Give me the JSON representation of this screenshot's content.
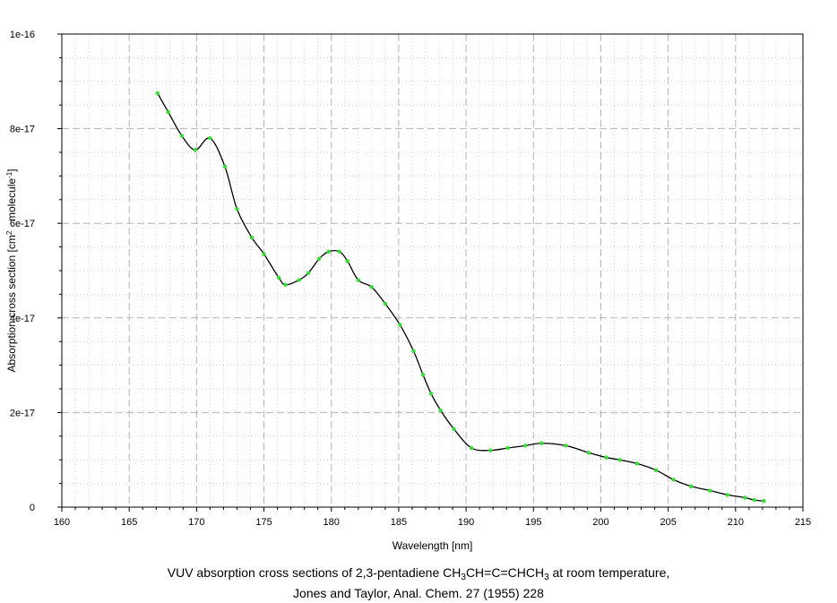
{
  "chart_data": {
    "type": "line",
    "xlabel": "Wavelength [nm]",
    "ylabel": {
      "text_before": "Absorption cross section [cm",
      "sup1": "2",
      "text_middle": " · molecule",
      "sup2": "-1",
      "text_after": "]"
    },
    "xlim": [
      160,
      215
    ],
    "ylim": [
      0,
      1e-16
    ],
    "x_ticks": [
      160,
      165,
      170,
      175,
      180,
      185,
      190,
      195,
      200,
      205,
      210,
      215
    ],
    "x_tick_labels": [
      "160",
      "165",
      "170",
      "175",
      "180",
      "185",
      "190",
      "195",
      "200",
      "205",
      "210",
      "215"
    ],
    "y_ticks": [
      0,
      2e-17,
      4e-17,
      6e-17,
      8e-17,
      1e-16
    ],
    "y_tick_labels": [
      "0",
      "2e-17",
      "4e-17",
      "6e-17",
      "8e-17",
      "1e-16"
    ],
    "grid": true,
    "legend": "none",
    "colors": {
      "line": "#000000",
      "marker": "#33dd33",
      "grid_major": "#b4b4b4",
      "grid_minor": "#d2d2d2"
    },
    "series": [
      {
        "x": [
          167.1,
          167.9,
          168.9,
          169.9,
          171.0,
          172.1,
          173.0,
          174.1,
          175.0,
          176.1,
          176.6,
          177.6,
          178.3,
          179.1,
          179.8,
          180.6,
          181.2,
          182.0,
          183.0,
          184.0,
          185.1,
          186.1,
          186.8,
          187.4,
          188.1,
          189.1,
          190.4,
          191.8,
          193.1,
          194.4,
          195.6,
          197.4,
          199.1,
          200.4,
          201.4,
          202.7,
          204.1,
          205.4,
          206.7,
          208.1,
          209.4,
          210.7,
          211.4,
          212.1
        ],
        "y": [
          8.75e-17,
          8.35e-17,
          7.85e-17,
          7.55e-17,
          7.8e-17,
          7.2e-17,
          6.3e-17,
          5.7e-17,
          5.35e-17,
          4.85e-17,
          4.7e-17,
          4.8e-17,
          4.95e-17,
          5.25e-17,
          5.4e-17,
          5.4e-17,
          5.2e-17,
          4.8e-17,
          4.65e-17,
          4.3e-17,
          3.85e-17,
          3.3e-17,
          2.8e-17,
          2.4e-17,
          2.05e-17,
          1.65e-17,
          1.25e-17,
          1.2e-17,
          1.25e-17,
          1.3e-17,
          1.35e-17,
          1.3e-17,
          1.15e-17,
          1.05e-17,
          1e-17,
          9.2e-18,
          7.8e-18,
          5.8e-18,
          4.4e-18,
          3.5e-18,
          2.6e-18,
          2e-18,
          1.5e-18,
          1.3e-18
        ]
      }
    ]
  },
  "caption": {
    "line1_before": "VUV absorption cross sections of 2,3-pentadiene CH",
    "line1_sub1": "3",
    "line1_middle": "CH=C=CHCH",
    "line1_sub2": "3",
    "line1_after": " at room temperature,",
    "line2": "Jones and Taylor, Anal. Chem. 27 (1955) 228"
  }
}
